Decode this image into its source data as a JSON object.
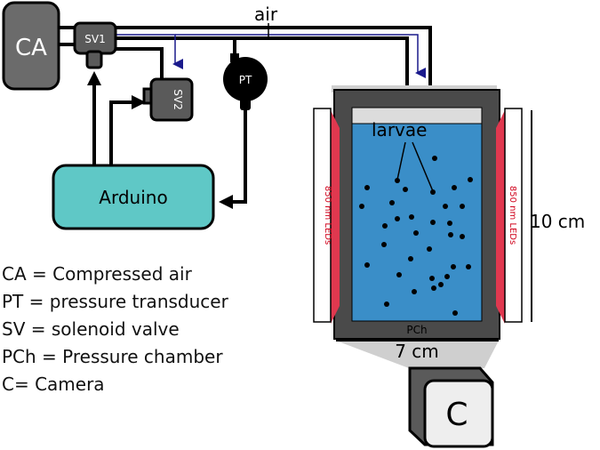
{
  "labels": {
    "ca": "CA",
    "sv1": "SV1",
    "sv2": "SV2",
    "pt": "PT",
    "air": "air",
    "arduino": "Arduino",
    "larvae": "larvae",
    "pch": "PCh",
    "led_left": "850 nm LEDs",
    "led_right": "850 nm LEDs",
    "height": "10 cm",
    "width": "7 cm",
    "camera": "C"
  },
  "legend": [
    "CA = Compressed air",
    "PT = pressure transducer",
    "SV = solenoid valve",
    "PCh = Pressure chamber",
    "C= Camera"
  ],
  "colors": {
    "water": "#3a8ec8",
    "arduino": "#5fc8c6",
    "led": "#e0384f",
    "chamber": "#4a4a4a",
    "air_line": "#1a1a8c"
  }
}
